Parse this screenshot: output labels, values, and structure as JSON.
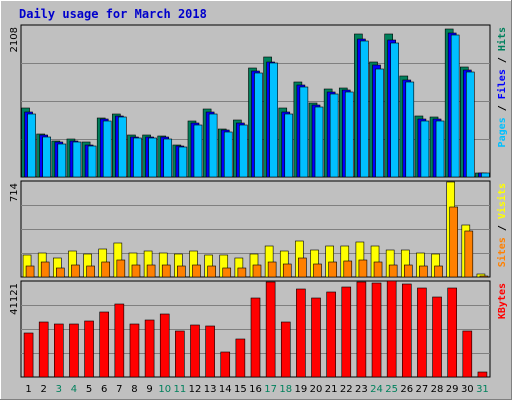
{
  "chart_data": {
    "type": "bar",
    "title": "Daily usage for March 2018",
    "categories": [
      "1",
      "2",
      "3",
      "4",
      "5",
      "6",
      "7",
      "8",
      "9",
      "10",
      "11",
      "12",
      "13",
      "14",
      "15",
      "16",
      "17",
      "18",
      "19",
      "20",
      "21",
      "22",
      "23",
      "24",
      "25",
      "26",
      "27",
      "28",
      "29",
      "30",
      "31"
    ],
    "weekend_days": [
      3,
      4,
      10,
      11,
      17,
      18,
      24,
      25,
      31
    ],
    "colors": {
      "background": "#c0c0c0",
      "title": "#0000cc",
      "weekday_label": "#000000",
      "weekend_label": "#00805c",
      "pages": "#00805c",
      "files": "#0000ff",
      "hits": "#00c0ff",
      "sites": "#ff8000",
      "visits": "#ffff00",
      "kbytes": "#ff0000"
    },
    "panels": [
      {
        "name": "hits-panel",
        "y_max_label": "2108",
        "ylim": [
          0,
          2108
        ],
        "side_labels": [
          {
            "text": "Pages",
            "color": "#00c0ff"
          },
          {
            "text": " / ",
            "color": "#000000"
          },
          {
            "text": "Files",
            "color": "#0000ff"
          },
          {
            "text": " / ",
            "color": "#000000"
          },
          {
            "text": "Hits",
            "color": "#00805c"
          }
        ],
        "series": [
          {
            "name": "Pages",
            "color": "#00805c",
            "values": [
              950,
              600,
              500,
              530,
              480,
              820,
              870,
              580,
              580,
              570,
              450,
              780,
              940,
              670,
              790,
              1510,
              1660,
              960,
              1320,
              1030,
              1220,
              1230,
              1990,
              1590,
              1980,
              1400,
              840,
              830,
              2050,
              1520,
              60
            ]
          },
          {
            "name": "Files",
            "color": "#0000ff",
            "values": [
              900,
              580,
              480,
              500,
              450,
              800,
              850,
              560,
              560,
              550,
              430,
              750,
              900,
              650,
              750,
              1470,
              1600,
              900,
              1270,
              1000,
              1180,
              1200,
              1920,
              1550,
              1900,
              1350,
              800,
              800,
              2000,
              1480,
              55
            ]
          },
          {
            "name": "Hits",
            "color": "#00c0ff",
            "values": [
              880,
              560,
              460,
              480,
              430,
              780,
              830,
              540,
              540,
              530,
              410,
              720,
              870,
              620,
              720,
              1440,
              1580,
              880,
              1250,
              970,
              1150,
              1180,
              1880,
              1500,
              1860,
              1320,
              780,
              770,
              1970,
              1460,
              50
            ]
          }
        ]
      },
      {
        "name": "visits-panel",
        "y_max_label": "714",
        "ylim": [
          0,
          714
        ],
        "side_labels": [
          {
            "text": "Sites",
            "color": "#ff8000"
          },
          {
            "text": " / ",
            "color": "#000000"
          },
          {
            "text": "Visits",
            "color": "#ffff00"
          }
        ],
        "series": [
          {
            "name": "Visits",
            "color": "#ffff00",
            "values": [
              160,
              180,
              140,
              190,
              170,
              210,
              250,
              180,
              190,
              180,
              170,
              190,
              160,
              160,
              140,
              170,
              230,
              190,
              270,
              200,
              230,
              230,
              260,
              230,
              200,
              200,
              180,
              170,
              710,
              390,
              20
            ]
          },
          {
            "name": "Sites",
            "color": "#ff8000",
            "values": [
              80,
              110,
              70,
              90,
              80,
              110,
              130,
              90,
              90,
              90,
              80,
              90,
              80,
              70,
              70,
              90,
              110,
              100,
              140,
              100,
              110,
              120,
              130,
              110,
              90,
              90,
              80,
              80,
              520,
              340,
              10
            ]
          }
        ]
      },
      {
        "name": "kbytes-panel",
        "y_max_label": "41121",
        "ylim": [
          0,
          41121
        ],
        "side_labels": [
          {
            "text": "KBytes",
            "color": "#ff0000"
          }
        ],
        "series": [
          {
            "name": "KBytes",
            "color": "#ff0000",
            "values": [
              18850,
              23450,
              22900,
              22900,
              24000,
              27950,
              31200,
              22900,
              24550,
              26800,
              19550,
              22450,
              21800,
              10900,
              16450,
              33750,
              40700,
              23450,
              37600,
              33750,
              36500,
              38700,
              40850,
              40100,
              41121,
              39800,
              38150,
              34300,
              38150,
              19500,
              2200
            ]
          }
        ]
      }
    ]
  }
}
